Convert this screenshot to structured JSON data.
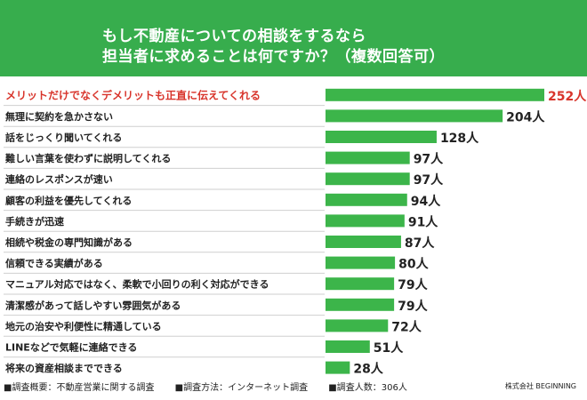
{
  "header": {
    "title_line1": "もし不動産についての相談をするなら",
    "title_line2": "担当者に求めることは何ですか？（複数回答可）"
  },
  "chart_data": {
    "type": "bar",
    "orientation": "horizontal",
    "unit": "人",
    "categories": [
      "メリットだけでなくデメリットも正直に伝えてくれる",
      "無理に契約を急かさない",
      "話をじっくり聞いてくれる",
      "難しい言葉を使わずに説明してくれる",
      "連絡のレスポンスが速い",
      "顧客の利益を優先してくれる",
      "手続きが迅速",
      "相続や税金の専門知識がある",
      "信頼できる実績がある",
      "マニュアル対応ではなく、柔軟で小回りの利く対応ができる",
      "清潔感があって話しやすい雰囲気がある",
      "地元の治安や利便性に精通している",
      "LINEなどで気軽に連絡できる",
      "将来の資産相談までできる"
    ],
    "values": [
      252,
      204,
      128,
      97,
      97,
      94,
      91,
      87,
      80,
      79,
      79,
      72,
      51,
      28
    ],
    "value_labels": [
      "252人",
      "204人",
      "128人",
      "97人",
      "97人",
      "94人",
      "91人",
      "87人",
      "80人",
      "79人",
      "79人",
      "72人",
      "51人",
      "28人"
    ],
    "highlight_index": 0,
    "colors": {
      "bar": "#3cb54a",
      "header": "#37ad4d",
      "highlight_text": "#d8342b",
      "divider": "#cfcfcf"
    }
  },
  "footer": {
    "item1": "■調査概要：不動産営業に関する調査",
    "item2": "■調査方法：インターネット調査",
    "item3": "■調査人数：306人",
    "brand": "株式会社 BEGINNING"
  }
}
